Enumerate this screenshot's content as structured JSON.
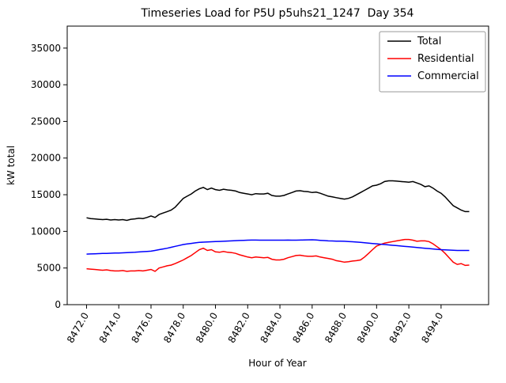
{
  "figure": {
    "title": "Timeseries Load for P5U p5uhs21_1247  Day 354",
    "xlabel": "Hour of Year",
    "ylabel": "kW total"
  },
  "chart_data": {
    "type": "line",
    "title": "Timeseries Load for P5U p5uhs21_1247  Day 354",
    "xlabel": "Hour of Year",
    "ylabel": "kW total",
    "grid": false,
    "legend_position": "upper right",
    "xlim": [
      8470.8,
      8496.95
    ],
    "ylim": [
      0,
      38000
    ],
    "xticks": {
      "values": [
        8472,
        8474,
        8476,
        8478,
        8480,
        8482,
        8484,
        8486,
        8488,
        8490,
        8492,
        8494
      ],
      "labels": [
        "8472.0",
        "8474.0",
        "8476.0",
        "8478.0",
        "8480.0",
        "8482.0",
        "8484.0",
        "8486.0",
        "8488.0",
        "8490.0",
        "8492.0",
        "8494.0"
      ]
    },
    "yticks": {
      "values": [
        0,
        5000,
        10000,
        15000,
        20000,
        25000,
        30000,
        35000
      ],
      "labels": [
        "0",
        "5000",
        "10000",
        "15000",
        "20000",
        "25000",
        "30000",
        "35000"
      ]
    },
    "x": [
      8472.0,
      8472.25,
      8472.5,
      8472.75,
      8473.0,
      8473.25,
      8473.5,
      8473.75,
      8474.0,
      8474.25,
      8474.5,
      8474.75,
      8475.0,
      8475.25,
      8475.5,
      8475.75,
      8476.0,
      8476.25,
      8476.5,
      8476.75,
      8477.0,
      8477.25,
      8477.5,
      8477.75,
      8478.0,
      8478.25,
      8478.5,
      8478.75,
      8479.0,
      8479.25,
      8479.5,
      8479.75,
      8480.0,
      8480.25,
      8480.5,
      8480.75,
      8481.0,
      8481.25,
      8481.5,
      8481.75,
      8482.0,
      8482.25,
      8482.5,
      8482.75,
      8483.0,
      8483.25,
      8483.5,
      8483.75,
      8484.0,
      8484.25,
      8484.5,
      8484.75,
      8485.0,
      8485.25,
      8485.5,
      8485.75,
      8486.0,
      8486.25,
      8486.5,
      8486.75,
      8487.0,
      8487.25,
      8487.5,
      8487.75,
      8488.0,
      8488.25,
      8488.5,
      8488.75,
      8489.0,
      8489.25,
      8489.5,
      8489.75,
      8490.0,
      8490.25,
      8490.5,
      8490.75,
      8491.0,
      8491.25,
      8491.5,
      8491.75,
      8492.0,
      8492.25,
      8492.5,
      8492.75,
      8493.0,
      8493.25,
      8493.5,
      8493.75,
      8494.0,
      8494.25,
      8494.5,
      8494.75,
      8495.0,
      8495.25,
      8495.5,
      8495.75
    ],
    "series": [
      {
        "name": "Total",
        "color": "#000000",
        "values": [
          11850,
          11750,
          11700,
          11650,
          11600,
          11650,
          11550,
          11600,
          11550,
          11600,
          11500,
          11650,
          11700,
          11800,
          11750,
          11900,
          12100,
          11900,
          12300,
          12500,
          12700,
          12900,
          13300,
          13900,
          14500,
          14800,
          15100,
          15500,
          15800,
          16000,
          15700,
          15900,
          15700,
          15600,
          15750,
          15650,
          15600,
          15500,
          15300,
          15200,
          15100,
          15000,
          15150,
          15100,
          15100,
          15200,
          14900,
          14800,
          14800,
          14900,
          15100,
          15300,
          15500,
          15550,
          15450,
          15400,
          15300,
          15350,
          15200,
          15000,
          14800,
          14700,
          14600,
          14500,
          14400,
          14500,
          14700,
          15000,
          15300,
          15600,
          15900,
          16200,
          16300,
          16500,
          16800,
          16900,
          16900,
          16850,
          16800,
          16750,
          16700,
          16800,
          16600,
          16400,
          16100,
          16200,
          15900,
          15500,
          15200,
          14700,
          14100,
          13500,
          13200,
          12900,
          12700,
          12700
        ]
      },
      {
        "name": "Residential",
        "color": "#ff0000",
        "values": [
          4900,
          4850,
          4800,
          4750,
          4700,
          4750,
          4650,
          4600,
          4600,
          4650,
          4550,
          4600,
          4600,
          4650,
          4600,
          4700,
          4800,
          4550,
          5000,
          5150,
          5300,
          5400,
          5600,
          5850,
          6100,
          6400,
          6700,
          7100,
          7500,
          7700,
          7400,
          7500,
          7200,
          7150,
          7250,
          7150,
          7100,
          7000,
          6800,
          6650,
          6500,
          6400,
          6500,
          6450,
          6400,
          6450,
          6200,
          6100,
          6100,
          6200,
          6400,
          6550,
          6700,
          6750,
          6650,
          6600,
          6600,
          6650,
          6500,
          6400,
          6300,
          6200,
          6000,
          5900,
          5800,
          5850,
          5950,
          6000,
          6100,
          6500,
          7000,
          7500,
          8000,
          8200,
          8400,
          8500,
          8600,
          8700,
          8800,
          8900,
          8900,
          8800,
          8650,
          8700,
          8700,
          8600,
          8300,
          7900,
          7500,
          7000,
          6400,
          5800,
          5500,
          5600,
          5350,
          5400
        ]
      },
      {
        "name": "Commercial",
        "color": "#0000ff",
        "values": [
          6900,
          6920,
          6940,
          6960,
          6980,
          7000,
          7020,
          7040,
          7050,
          7070,
          7090,
          7120,
          7150,
          7190,
          7230,
          7270,
          7300,
          7400,
          7500,
          7600,
          7700,
          7830,
          7960,
          8080,
          8200,
          8280,
          8360,
          8430,
          8500,
          8530,
          8560,
          8580,
          8600,
          8630,
          8650,
          8680,
          8700,
          8730,
          8750,
          8780,
          8800,
          8810,
          8810,
          8800,
          8800,
          8800,
          8800,
          8800,
          8800,
          8800,
          8810,
          8800,
          8800,
          8810,
          8830,
          8840,
          8850,
          8820,
          8780,
          8740,
          8700,
          8690,
          8670,
          8660,
          8650,
          8620,
          8580,
          8540,
          8500,
          8450,
          8400,
          8350,
          8300,
          8250,
          8200,
          8150,
          8100,
          8050,
          8000,
          7950,
          7900,
          7850,
          7800,
          7750,
          7700,
          7650,
          7600,
          7550,
          7500,
          7480,
          7450,
          7430,
          7400,
          7400,
          7400,
          7400
        ]
      }
    ]
  }
}
